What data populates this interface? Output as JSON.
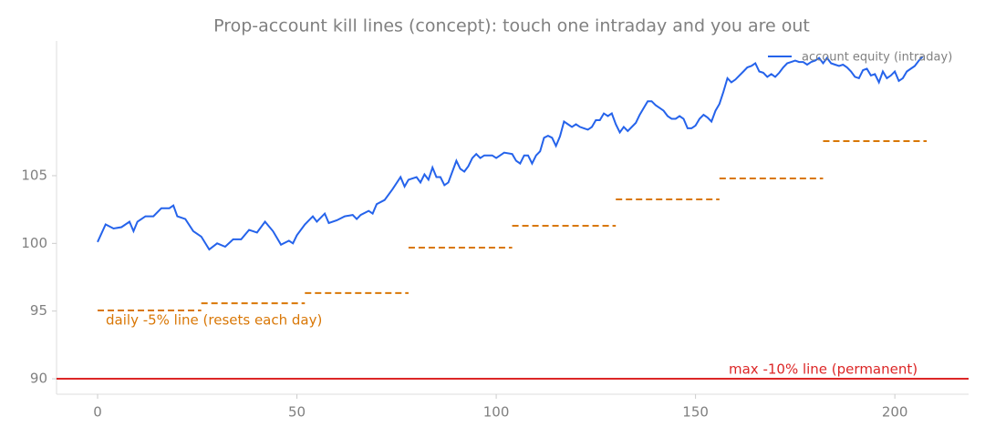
{
  "chart_data": {
    "type": "line",
    "title": "Prop-account kill lines (concept): touch one intraday and you are out",
    "x": [
      0,
      2,
      4,
      6,
      8,
      9,
      10,
      12,
      14,
      16,
      18,
      19,
      20,
      22,
      24,
      26,
      28,
      30,
      32,
      34,
      36,
      38,
      40,
      42,
      44,
      46,
      48,
      49,
      50,
      52,
      54,
      55,
      57,
      58,
      60,
      62,
      64,
      65,
      66,
      68,
      69,
      70,
      72,
      74,
      76,
      77,
      78,
      80,
      81,
      82,
      83,
      84,
      85,
      86,
      87,
      88,
      90,
      91,
      92,
      93,
      94,
      95,
      96,
      97,
      99,
      100,
      102,
      104,
      105,
      106,
      107,
      108,
      109,
      110,
      111,
      112,
      113,
      114,
      115,
      116,
      117,
      118,
      119,
      120,
      121,
      122,
      123,
      124,
      125,
      126,
      127,
      128,
      129,
      130,
      131,
      132,
      133,
      135,
      136,
      137,
      138,
      139,
      140,
      141,
      142,
      143,
      144,
      145,
      146,
      147,
      148,
      149,
      150,
      151,
      152,
      153,
      154,
      155,
      156,
      157,
      158,
      159,
      160,
      161,
      162,
      163,
      164,
      165,
      166,
      167,
      168,
      169,
      170,
      171,
      172,
      173,
      174,
      175,
      176,
      177,
      178,
      179,
      180,
      181,
      182,
      183,
      184,
      185,
      186,
      187,
      188,
      189,
      190,
      191,
      192,
      193,
      194,
      195,
      196,
      197,
      198,
      199,
      200,
      201,
      202,
      203,
      204,
      205,
      206,
      207
    ],
    "series": [
      {
        "name": "account equity (intraday)",
        "color": "#2563eb",
        "values": [
          100.1,
          101.4,
          101.1,
          101.2,
          101.6,
          100.9,
          101.6,
          102.0,
          102.0,
          102.6,
          102.6,
          102.8,
          102.0,
          101.8,
          100.9,
          100.5,
          99.55,
          100.0,
          99.75,
          100.3,
          100.3,
          101.0,
          100.8,
          101.6,
          100.9,
          99.9,
          100.2,
          100.0,
          100.6,
          101.4,
          102.0,
          101.6,
          102.2,
          101.5,
          101.7,
          102.0,
          102.1,
          101.8,
          102.1,
          102.4,
          102.2,
          102.9,
          103.2,
          104.0,
          104.9,
          104.2,
          104.7,
          104.9,
          104.5,
          105.1,
          104.7,
          105.6,
          104.9,
          104.9,
          104.3,
          104.5,
          106.1,
          105.5,
          105.3,
          105.7,
          106.3,
          106.6,
          106.3,
          106.5,
          106.5,
          106.3,
          106.7,
          106.6,
          106.1,
          105.9,
          106.5,
          106.5,
          105.9,
          106.5,
          106.8,
          107.8,
          107.95,
          107.8,
          107.2,
          107.9,
          109.0,
          108.8,
          108.6,
          108.8,
          108.6,
          108.5,
          108.4,
          108.6,
          109.1,
          109.1,
          109.6,
          109.4,
          109.6,
          108.8,
          108.2,
          108.6,
          108.3,
          108.9,
          109.5,
          110.0,
          110.5,
          110.5,
          110.2,
          110.0,
          109.8,
          109.4,
          109.2,
          109.2,
          109.4,
          109.2,
          108.5,
          108.5,
          108.7,
          109.2,
          109.5,
          109.3,
          109.0,
          109.8,
          110.3,
          111.2,
          112.2,
          111.9,
          112.1,
          112.4,
          112.7,
          113.0,
          113.1,
          113.3,
          112.7,
          112.6,
          112.3,
          112.5,
          112.3,
          112.6,
          113.0,
          113.3,
          113.4,
          113.5,
          113.4,
          113.4,
          113.2,
          113.4,
          113.5,
          113.7,
          113.3,
          113.7,
          113.3,
          113.2,
          113.1,
          113.2,
          113.0,
          112.7,
          112.3,
          112.2,
          112.8,
          112.9,
          112.4,
          112.5,
          111.9,
          112.7,
          112.2,
          112.4,
          112.7,
          112.0,
          112.2,
          112.7,
          112.9,
          113.1,
          113.5,
          113.8
        ]
      }
    ],
    "daily_lines": {
      "name": "daily -5% line (resets each day)",
      "color": "#d97706",
      "segments": [
        {
          "x": [
            0,
            26
          ],
          "value": 95.05
        },
        {
          "x": [
            26,
            52
          ],
          "value": 95.58
        },
        {
          "x": [
            52,
            78
          ],
          "value": 96.33
        },
        {
          "x": [
            78,
            104
          ],
          "value": 99.69
        },
        {
          "x": [
            104,
            130
          ],
          "value": 101.3
        },
        {
          "x": [
            130,
            156
          ],
          "value": 103.25
        },
        {
          "x": [
            156,
            182
          ],
          "value": 104.8
        },
        {
          "x": [
            182,
            208
          ],
          "value": 107.55
        }
      ]
    },
    "max_line": {
      "name": "max -10% line (permanent)",
      "value": 90,
      "color": "#dc2626"
    },
    "xlim": [
      -10.3,
      218.5
    ],
    "ylim": [
      88.86,
      114.95
    ],
    "xticks": [
      0,
      50,
      100,
      150,
      200
    ],
    "yticks": [
      90,
      95,
      100,
      105
    ],
    "legend": "upper right"
  }
}
